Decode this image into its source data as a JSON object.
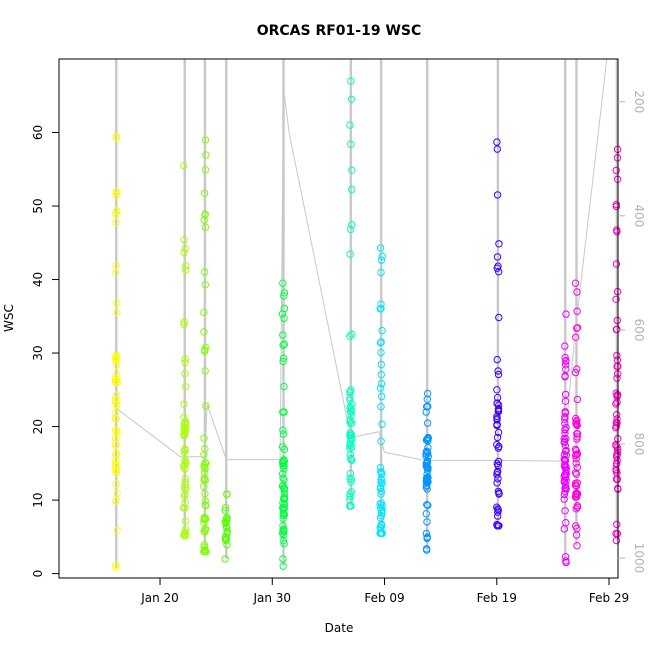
{
  "chart_data": {
    "type": "scatter",
    "title": "ORCAS RF01-19 WSC",
    "xlabel": "Date",
    "ylabel": "WSC",
    "xlim": [
      11.0,
      60.8
    ],
    "ylim": [
      -0.6,
      70.0
    ],
    "x_ticks": [
      {
        "value": 20,
        "label": "Jan 20"
      },
      {
        "value": 30,
        "label": "Jan 30"
      },
      {
        "value": 40,
        "label": "Feb 09"
      },
      {
        "value": 50,
        "label": "Feb 19"
      },
      {
        "value": 60,
        "label": "Feb 29"
      }
    ],
    "y_ticks": [
      0,
      10,
      20,
      30,
      40,
      50,
      60
    ],
    "secondary_axis": {
      "side": "right",
      "reversed": true,
      "range": [
        1035,
        125
      ],
      "ticks": [
        200,
        400,
        600,
        800,
        1000
      ],
      "color": "#b3b3b3"
    },
    "grid": false,
    "flights": [
      {
        "x": 16.1,
        "y_min": 0.8,
        "y_max": 59.5,
        "y_cluster": 20.0,
        "n": 55,
        "color": "#ffff00"
      },
      {
        "x": 22.2,
        "y_min": 5.2,
        "y_max": 55.5,
        "y_cluster": 12.0,
        "n": 55,
        "color": "#aaff00"
      },
      {
        "x": 24.0,
        "y_min": 3.0,
        "y_max": 59.0,
        "y_cluster": 8.0,
        "n": 60,
        "color": "#80ff00"
      },
      {
        "x": 25.9,
        "y_min": 2.0,
        "y_max": 10.8,
        "y_cluster": 6.0,
        "n": 22,
        "color": "#55ff00"
      },
      {
        "x": 31.0,
        "y_min": 1.0,
        "y_max": 39.5,
        "y_cluster": 9.0,
        "n": 60,
        "color": "#00ff40"
      },
      {
        "x": 37.0,
        "y_min": 9.2,
        "y_max": 67.0,
        "y_cluster": 17.0,
        "n": 55,
        "color": "#00ffc0"
      },
      {
        "x": 39.7,
        "y_min": 5.5,
        "y_max": 44.3,
        "y_cluster": 8.0,
        "n": 55,
        "color": "#00e5ff"
      },
      {
        "x": 43.8,
        "y_min": 3.2,
        "y_max": 24.5,
        "y_cluster": 15.0,
        "n": 55,
        "color": "#0095ff"
      },
      {
        "x": 50.1,
        "y_min": 6.5,
        "y_max": 58.7,
        "y_cluster": 15.0,
        "n": 55,
        "color": "#4000ff"
      },
      {
        "x": 56.1,
        "y_min": 1.5,
        "y_max": 35.3,
        "y_cluster": 16.0,
        "n": 60,
        "color": "#ee00ff"
      },
      {
        "x": 57.1,
        "y_min": 3.8,
        "y_max": 39.5,
        "y_cluster": 15.0,
        "n": 50,
        "color": "#ff00e0"
      },
      {
        "x": 60.7,
        "y_min": 4.5,
        "y_max": 57.7,
        "y_cluster": 20.0,
        "n": 55,
        "color": "#ff00c8"
      }
    ],
    "track_line": {
      "color": "#c8c8c8",
      "points": [
        [
          16.1,
          22.5
        ],
        [
          21.8,
          15.9
        ],
        [
          24.0,
          15.9
        ],
        [
          24.2,
          23.0
        ],
        [
          25.9,
          15.5
        ],
        [
          30.7,
          15.5
        ],
        [
          31.0,
          66.0
        ],
        [
          31.5,
          60.0
        ],
        [
          37.0,
          18.5
        ],
        [
          39.5,
          19.3
        ],
        [
          40.0,
          16.5
        ],
        [
          43.6,
          15.4
        ],
        [
          50.0,
          15.4
        ],
        [
          56.0,
          15.3
        ],
        [
          56.4,
          23.5
        ],
        [
          57.0,
          33.0
        ],
        [
          59.8,
          70.0
        ]
      ]
    }
  }
}
